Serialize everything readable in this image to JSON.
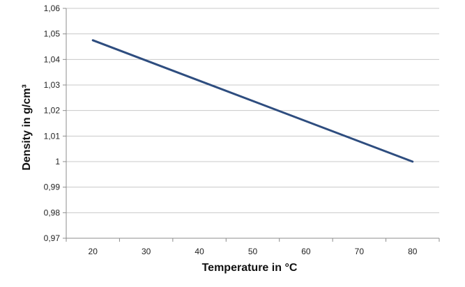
{
  "chart_data": {
    "type": "line",
    "title": "",
    "xlabel": "Temperature in °C",
    "ylabel": "Density in g/cm³",
    "x_ticks": [
      "20",
      "30",
      "40",
      "50",
      "60",
      "70",
      "80"
    ],
    "y_ticks": [
      "0,97",
      "0,98",
      "0,99",
      "1",
      "1,01",
      "1,02",
      "1,03",
      "1,04",
      "1,05",
      "1,06"
    ],
    "xlim": [
      15,
      85
    ],
    "ylim": [
      0.97,
      1.06
    ],
    "grid": "horizontal",
    "legend": "none",
    "series": [
      {
        "x": [
          20,
          80
        ],
        "y": [
          1.0475,
          1.0
        ]
      }
    ],
    "colors": {
      "line": "#2e4d7f",
      "grid": "#c8c8c8",
      "axis": "#8c8c8c"
    }
  }
}
